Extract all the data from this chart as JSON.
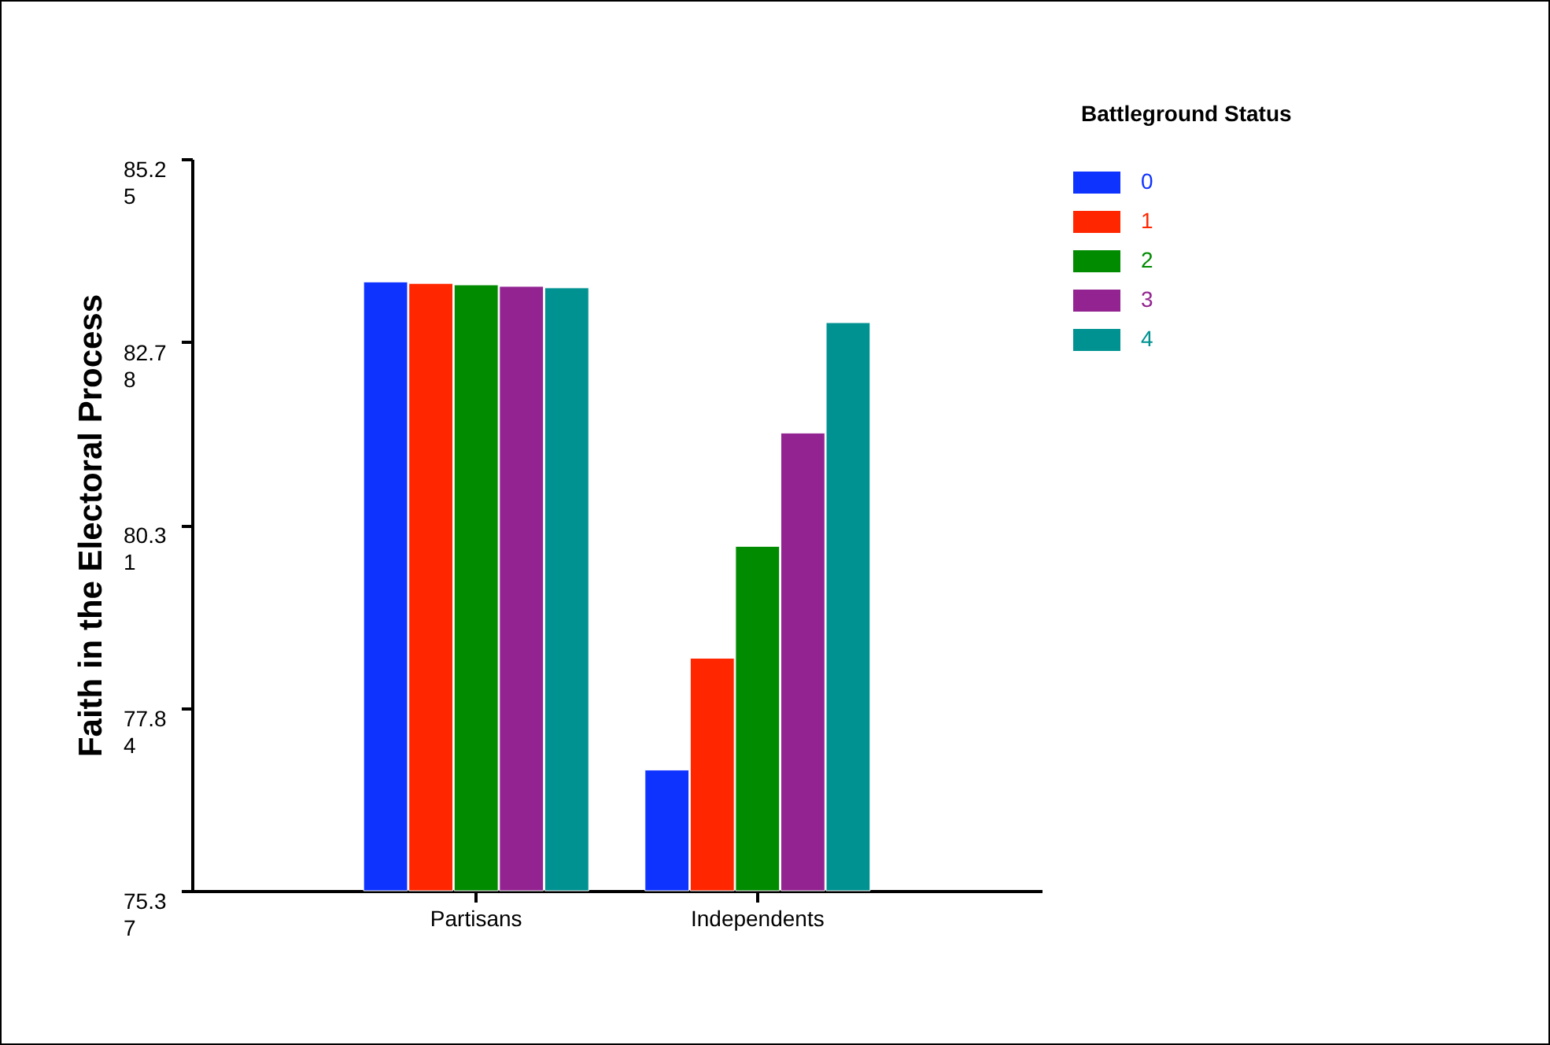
{
  "chart_data": {
    "type": "bar",
    "ylabel": "Faith in the Electoral Process",
    "legend_title": "Battleground Status",
    "categories": [
      "Partisans",
      "Independents"
    ],
    "series": [
      {
        "name": "0",
        "color": "#0f33ff",
        "values": [
          83.59,
          77.0
        ]
      },
      {
        "name": "1",
        "color": "#ff2600",
        "values": [
          83.57,
          78.51
        ]
      },
      {
        "name": "2",
        "color": "#008b00",
        "values": [
          83.55,
          80.02
        ]
      },
      {
        "name": "3",
        "color": "#932391",
        "values": [
          83.53,
          81.55
        ]
      },
      {
        "name": "4",
        "color": "#009291",
        "values": [
          83.51,
          83.04
        ]
      }
    ],
    "ylim": [
      75.37,
      85.25
    ],
    "yticks": [
      75.37,
      77.84,
      80.31,
      82.78,
      85.25
    ],
    "grid": false,
    "legend": "top right"
  }
}
